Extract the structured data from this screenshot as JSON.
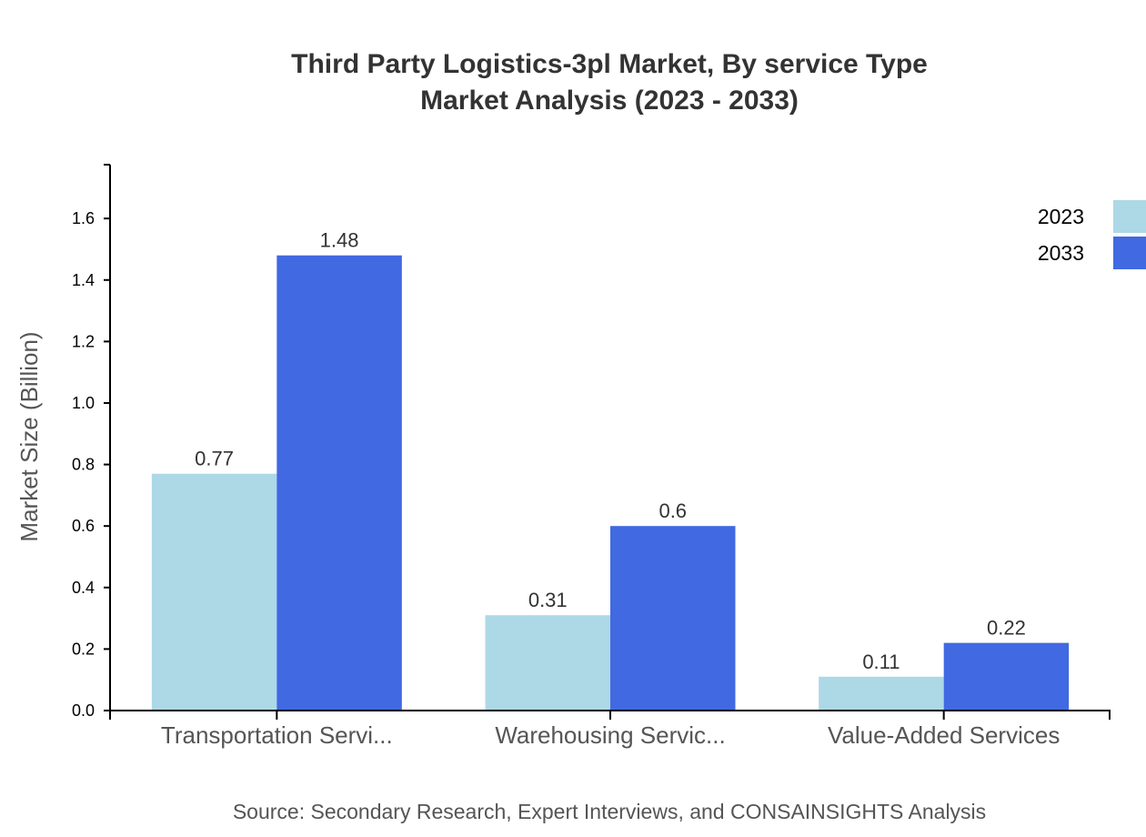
{
  "chart_data": {
    "type": "bar",
    "title": "Third Party Logistics-3pl Market, By service Type",
    "subtitle": "Market Analysis (2023 - 2033)",
    "xlabel": "",
    "ylabel": "Market Size (Billion)",
    "ylim": [
      0,
      1.775
    ],
    "yticks": [
      "0.0",
      "0.2",
      "0.4",
      "0.6",
      "0.8",
      "1.0",
      "1.2",
      "1.4",
      "1.6"
    ],
    "categories": [
      "Transportation Servi...",
      "Warehousing Servic...",
      "Value-Added Services"
    ],
    "series": [
      {
        "name": "2023",
        "color": "#add8e6",
        "values": [
          0.77,
          0.31,
          0.11
        ],
        "labels": [
          "0.77",
          "0.31",
          "0.11"
        ]
      },
      {
        "name": "2033",
        "color": "#4169e1",
        "values": [
          1.48,
          0.6,
          0.22
        ],
        "labels": [
          "1.48",
          "0.6",
          "0.22"
        ]
      }
    ],
    "grid": false,
    "legend": "top-right",
    "source": "Source: Secondary Research, Expert Interviews, and CONSAINSIGHTS Analysis"
  }
}
